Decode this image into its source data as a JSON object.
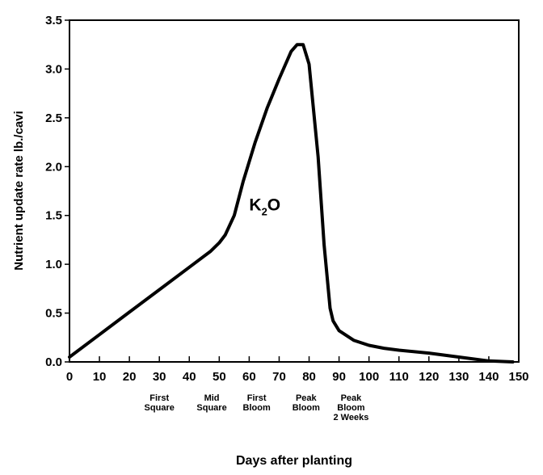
{
  "chart_data": {
    "type": "line",
    "x_label": "Days after planting",
    "y_label": "Nutrient update rate lb./cavi",
    "annotation": [
      "K",
      "2",
      "O"
    ],
    "annotation_x": 60,
    "annotation_y": 1.55,
    "x": [
      0,
      10,
      20,
      30,
      40,
      47,
      50,
      52,
      55,
      58,
      62,
      66,
      70,
      74,
      76,
      78,
      80,
      83,
      85,
      87,
      88,
      90,
      95,
      100,
      105,
      110,
      120,
      130,
      140,
      148
    ],
    "series": [
      {
        "name": "K2O",
        "color": "#000000",
        "values": [
          0.05,
          0.28,
          0.51,
          0.74,
          0.97,
          1.13,
          1.22,
          1.3,
          1.5,
          1.85,
          2.25,
          2.6,
          2.9,
          3.18,
          3.25,
          3.25,
          3.05,
          2.1,
          1.2,
          0.55,
          0.42,
          0.32,
          0.22,
          0.17,
          0.14,
          0.12,
          0.09,
          0.05,
          0.01,
          0.0
        ]
      }
    ],
    "xlim": [
      0,
      150
    ],
    "ylim": [
      0,
      3.5
    ],
    "xticks": [
      0,
      10,
      20,
      30,
      40,
      50,
      60,
      70,
      80,
      90,
      100,
      110,
      120,
      130,
      140,
      150
    ],
    "yticks": [
      {
        "value": 0,
        "label": "0.0"
      },
      0.5,
      {
        "value": 1,
        "label": "1.0"
      },
      1.5,
      {
        "value": 2,
        "label": "2.0"
      },
      2.5,
      {
        "value": 3,
        "label": "3.0"
      },
      3.5
    ],
    "stages": [
      {
        "x": 30,
        "lines": [
          "First",
          "Square"
        ]
      },
      {
        "x": 47.5,
        "lines": [
          "Mid",
          "Square"
        ]
      },
      {
        "x": 62.5,
        "lines": [
          "First",
          "Bloom"
        ]
      },
      {
        "x": 79,
        "lines": [
          "Peak",
          "Bloom"
        ]
      },
      {
        "x": 94,
        "lines": [
          "Peak",
          "Bloom",
          "2 Weeks"
        ]
      }
    ]
  }
}
